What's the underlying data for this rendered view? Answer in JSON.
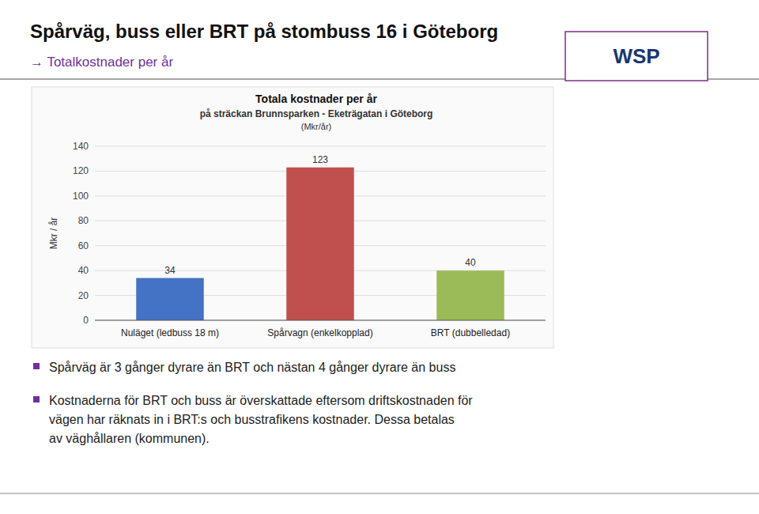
{
  "title": "Spårväg, buss eller BRT på stombuss 16 i Göteborg",
  "subtitle": "→ Totalkostnader per år",
  "logo": "WSP",
  "notes": [
    [
      "Spårväg är 3 gånger dyrare än BRT och nästan 4 gånger dyrare än buss"
    ],
    [
      "Kostnaderna för BRT och buss är överskattade eftersom driftskostnaden för",
      "vägen har räknats in i BRT:s och busstrafikens kostnader. Dessa betalas",
      "av väghållaren (kommunen)."
    ]
  ],
  "chart_data": {
    "type": "bar",
    "title": "Totala kostnader per år",
    "subtitle": [
      "på sträckan Brunnsparken - Eketrägatan i Göteborg",
      "(Mkr/år)"
    ],
    "y_label": "Mkr / år",
    "categories": [
      "Nuläget (ledbuss 18 m)",
      "Spårvagn (enkelkopplad)",
      "BRT (dubbelledad)"
    ],
    "values": [
      34,
      123,
      40
    ],
    "colors": [
      "#4472C4",
      "#C0504D",
      "#9BBB59"
    ],
    "ylim": [
      0,
      140
    ],
    "yticks": [
      0,
      20,
      40,
      60,
      80,
      100,
      120,
      140
    ],
    "grid": true,
    "data_labels": true
  }
}
